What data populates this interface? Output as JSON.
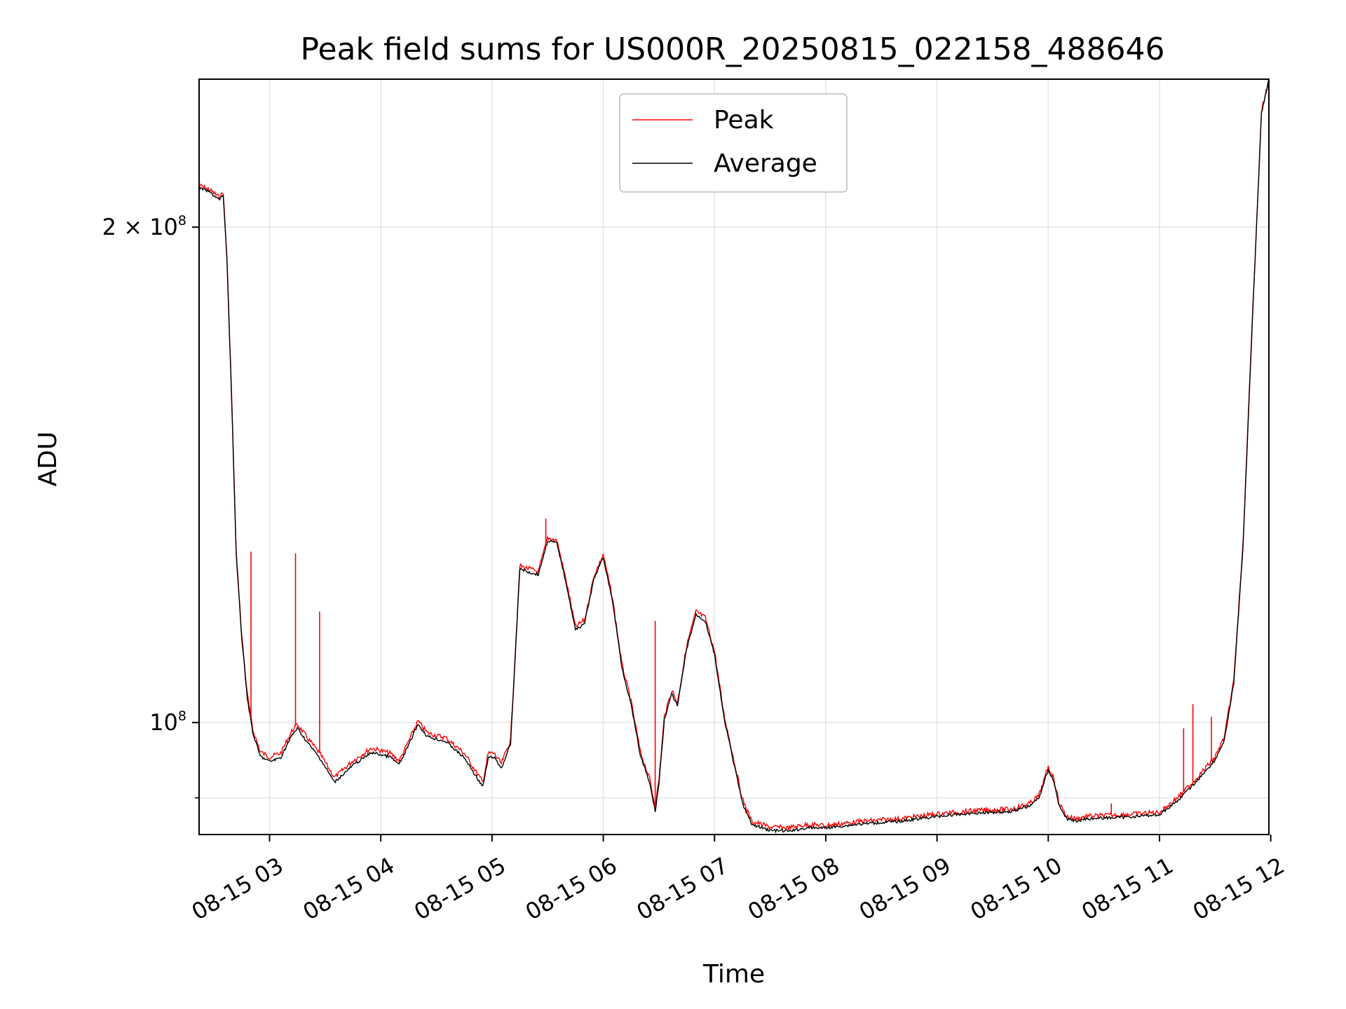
{
  "chart_data": {
    "type": "line",
    "title": "Peak field sums for US000R_20250815_022158_488646",
    "xlabel": "Time",
    "ylabel": "ADU",
    "y_scale": "log",
    "ylim": [
      85500000,
      246000000
    ],
    "x_range": [
      "2025-08-15T02:22:00",
      "2025-08-15T11:59:00"
    ],
    "x_ticks": [
      {
        "t": "2025-08-15T03:00",
        "label": "08-15 03"
      },
      {
        "t": "2025-08-15T04:00",
        "label": "08-15 04"
      },
      {
        "t": "2025-08-15T05:00",
        "label": "08-15 05"
      },
      {
        "t": "2025-08-15T06:00",
        "label": "08-15 06"
      },
      {
        "t": "2025-08-15T07:00",
        "label": "08-15 07"
      },
      {
        "t": "2025-08-15T08:00",
        "label": "08-15 08"
      },
      {
        "t": "2025-08-15T09:00",
        "label": "08-15 09"
      },
      {
        "t": "2025-08-15T10:00",
        "label": "08-15 10"
      },
      {
        "t": "2025-08-15T11:00",
        "label": "08-15 11"
      },
      {
        "t": "2025-08-15T12:00",
        "label": "08-15 12"
      }
    ],
    "y_ticks": [
      {
        "value": 100000000,
        "base": "10",
        "exp": "8",
        "mantissa": ""
      },
      {
        "value": 200000000,
        "base": "10",
        "exp": "8",
        "mantissa": "2 × "
      }
    ],
    "y_minor_ticks": [
      90000000
    ],
    "grid": true,
    "legend_position": "top-center",
    "series": [
      {
        "name": "Peak",
        "color": "#ff0000",
        "x": [
          "2025-08-15T02:22",
          "2025-08-15T02:27",
          "2025-08-15T02:33",
          "2025-08-15T02:35",
          "2025-08-15T02:37",
          "2025-08-15T02:39",
          "2025-08-15T02:40",
          "2025-08-15T02:42",
          "2025-08-15T02:45",
          "2025-08-15T02:48",
          "2025-08-15T02:51",
          "2025-08-15T02:55",
          "2025-08-15T03:00",
          "2025-08-15T03:06",
          "2025-08-15T03:12",
          "03:15",
          "03:20",
          "03:27",
          "03:35",
          "03:45",
          "03:55",
          "04:05",
          "04:10",
          "04:15",
          "04:20",
          "04:25",
          "04:30",
          "04:35",
          "04:45",
          "04:55",
          "04:58",
          "05:01",
          "05:05",
          "05:10",
          "05:15",
          "05:20",
          "05:25",
          "05:30",
          "05:35",
          "05:40",
          "05:45",
          "05:50",
          "05:55",
          "06:00",
          "06:05",
          "06:10",
          "06:15",
          "06:20",
          "06:25",
          "06:28",
          "06:30",
          "06:33",
          "06:37",
          "06:40",
          "06:45",
          "06:50",
          "06:55",
          "07:00",
          "07:05",
          "07:10",
          "07:15",
          "07:20",
          "07:30",
          "07:40",
          "07:50",
          "08:00",
          "08:20",
          "08:40",
          "09:00",
          "09:20",
          "09:40",
          "09:50",
          "09:55",
          "10:00",
          "10:03",
          "10:06",
          "10:10",
          "10:15",
          "10:20",
          "10:40",
          "11:00",
          "11:10",
          "11:20",
          "11:30",
          "11:35",
          "11:40",
          "11:45",
          "11:50",
          "11:55",
          "11:59"
        ],
        "values": [
          212000000,
          211000000,
          208500000,
          210000000,
          192000000,
          165000000,
          152000000,
          127000000,
          113000000,
          104000000,
          99000000,
          96000000,
          95300000,
          95800000,
          98800000,
          99800000,
          98000000,
          95800000,
          92600000,
          94800000,
          96500000,
          95800000,
          94800000,
          97400000,
          100200000,
          98600000,
          98200000,
          97900000,
          95800000,
          92000000,
          95800000,
          95800000,
          94400000,
          97600000,
          124500000,
          124000000,
          123500000,
          129500000,
          129000000,
          122000000,
          114300000,
          115500000,
          122800000,
          126500000,
          119000000,
          108600000,
          103000000,
          96000000,
          92400000,
          88800000,
          92300000,
          101000000,
          104600000,
          102800000,
          111400000,
          116800000,
          115800000,
          110500000,
          101300000,
          95400000,
          89900000,
          87100000,
          86400000,
          86300000,
          86700000,
          86600000,
          87100000,
          87400000,
          88000000,
          88400000,
          88600000,
          89300000,
          90300000,
          94000000,
          92500000,
          89300000,
          87700000,
          87400000,
          87700000,
          87900000,
          88200000,
          90100000,
          92500000,
          95300000,
          98000000,
          106000000,
          128000000,
          175000000,
          235000000,
          246000000
        ]
      },
      {
        "name": "Average",
        "color": "#000000",
        "x": [
          "2025-08-15T02:22",
          "2025-08-15T02:27",
          "2025-08-15T02:33",
          "2025-08-15T02:35",
          "2025-08-15T02:37",
          "2025-08-15T02:39",
          "2025-08-15T02:40",
          "2025-08-15T02:42",
          "2025-08-15T02:45",
          "2025-08-15T02:48",
          "2025-08-15T02:51",
          "2025-08-15T02:55",
          "2025-08-15T03:00",
          "2025-08-15T03:06",
          "2025-08-15T03:12",
          "03:15",
          "03:20",
          "03:27",
          "03:35",
          "03:45",
          "03:55",
          "04:05",
          "04:10",
          "04:15",
          "04:20",
          "04:25",
          "04:30",
          "04:35",
          "04:45",
          "04:55",
          "04:58",
          "05:01",
          "05:05",
          "05:10",
          "05:15",
          "05:20",
          "05:25",
          "05:30",
          "05:35",
          "05:40",
          "05:45",
          "05:50",
          "05:55",
          "06:00",
          "06:05",
          "06:10",
          "06:15",
          "06:20",
          "06:25",
          "06:28",
          "06:30",
          "06:33",
          "06:37",
          "06:40",
          "06:45",
          "06:50",
          "06:55",
          "07:00",
          "07:05",
          "07:10",
          "07:15",
          "07:20",
          "07:30",
          "07:40",
          "07:50",
          "08:00",
          "08:20",
          "08:40",
          "09:00",
          "09:20",
          "09:40",
          "09:50",
          "09:55",
          "10:00",
          "10:03",
          "10:06",
          "10:10",
          "10:15",
          "10:20",
          "10:40",
          "11:00",
          "11:10",
          "11:20",
          "11:30",
          "11:35",
          "11:40",
          "11:45",
          "11:50",
          "11:55",
          "11:59"
        ],
        "values": [
          211300000,
          210300000,
          207800000,
          209300000,
          191300000,
          164200000,
          151500000,
          126500000,
          112600000,
          103500000,
          98500000,
          95400000,
          94700000,
          95200000,
          98200000,
          99200000,
          97400000,
          95200000,
          92000000,
          94200000,
          95900000,
          95300000,
          94300000,
          96900000,
          99800000,
          98100000,
          97700000,
          97400000,
          95200000,
          91400000,
          95200000,
          95300000,
          93800000,
          97000000,
          124000000,
          123400000,
          123000000,
          129000000,
          128500000,
          121500000,
          113800000,
          115000000,
          122300000,
          126000000,
          118500000,
          108100000,
          102500000,
          95500000,
          91900000,
          88300000,
          91800000,
          100500000,
          104100000,
          102300000,
          110900000,
          116300000,
          115300000,
          110000000,
          100800000,
          94900000,
          89400000,
          86700000,
          86000000,
          85900000,
          86300000,
          86300000,
          86800000,
          87100000,
          87700000,
          88100000,
          88300000,
          89000000,
          90000000,
          93600000,
          92100000,
          88900000,
          87400000,
          87100000,
          87400000,
          87600000,
          87900000,
          89700000,
          92100000,
          94900000,
          97600000,
          105500000,
          127500000,
          174500000,
          234500000,
          246000000
        ]
      }
    ],
    "spikes": [
      {
        "series": "Peak",
        "t": "02:50",
        "value": 127000000
      },
      {
        "series": "Peak",
        "t": "03:14",
        "value": 126700000
      },
      {
        "series": "Peak",
        "t": "03:27",
        "value": 116800000
      },
      {
        "series": "Peak",
        "t": "05:29",
        "value": 133000000
      },
      {
        "series": "Peak",
        "t": "06:28",
        "value": 115300000
      },
      {
        "series": "Peak",
        "t": "09:47",
        "value": 89100000
      },
      {
        "series": "Peak",
        "t": "10:34",
        "value": 89300000
      },
      {
        "series": "Peak",
        "t": "11:13",
        "value": 99200000
      },
      {
        "series": "Peak",
        "t": "11:18",
        "value": 102600000
      },
      {
        "series": "Peak",
        "t": "11:28",
        "value": 100800000
      }
    ]
  }
}
